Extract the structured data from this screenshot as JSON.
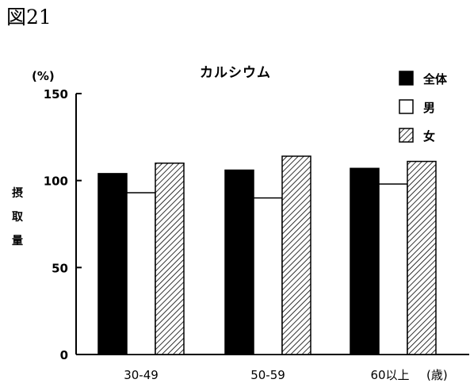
{
  "figure_label": "図21",
  "chart_data": {
    "type": "bar",
    "title": "カルシウム",
    "y_unit": "(%)",
    "ylabel": "摂取量",
    "x_unit": "(歳)",
    "categories": [
      "30-49",
      "50-59",
      "60以上"
    ],
    "series": [
      {
        "name": "全体",
        "fill": "solid",
        "values": [
          104,
          106,
          107
        ]
      },
      {
        "name": "男",
        "fill": "empty",
        "values": [
          93,
          90,
          98
        ]
      },
      {
        "name": "女",
        "fill": "hatched",
        "values": [
          110,
          114,
          111
        ]
      }
    ],
    "ylim": [
      0,
      150
    ],
    "yticks": [
      0,
      50,
      100,
      150
    ],
    "grid": false,
    "legend_position": "top-right",
    "colors": {
      "ink": "#000000",
      "background": "#ffffff"
    }
  }
}
